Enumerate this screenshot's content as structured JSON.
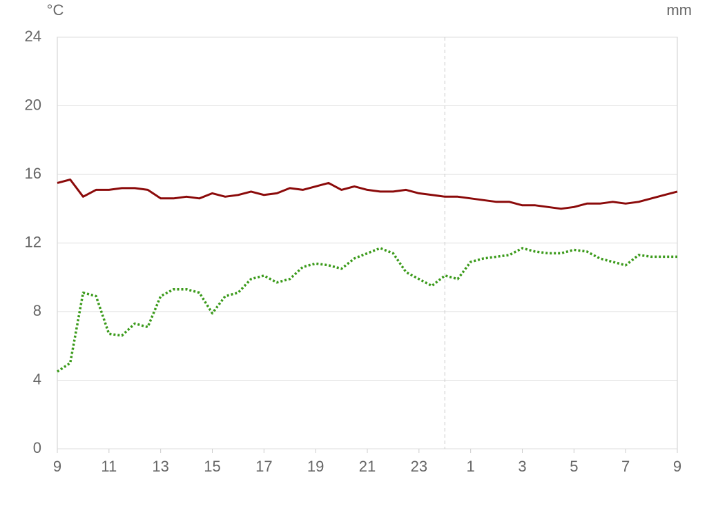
{
  "chart_data": {
    "type": "line",
    "y_label": "°C",
    "y2_label": "mm",
    "x": [
      9,
      9.5,
      10,
      10.5,
      11,
      11.5,
      12,
      12.5,
      13,
      13.5,
      14,
      14.5,
      15,
      15.5,
      16,
      16.5,
      17,
      17.5,
      18,
      18.5,
      19,
      19.5,
      20,
      20.5,
      21,
      21.5,
      22,
      22.5,
      23,
      23.5,
      24,
      24.5,
      25,
      25.5,
      26,
      26.5,
      27,
      27.5,
      28,
      28.5,
      29,
      29.5,
      30,
      30.5,
      31,
      31.5,
      32,
      32.5,
      33
    ],
    "series": [
      {
        "color": "#8b0a0a",
        "style": "solid",
        "values": [
          15.5,
          15.7,
          14.7,
          15.1,
          15.1,
          15.2,
          15.2,
          15.1,
          14.6,
          14.6,
          14.7,
          14.6,
          14.9,
          14.7,
          14.8,
          15.0,
          14.8,
          14.9,
          15.2,
          15.1,
          15.3,
          15.5,
          15.1,
          15.3,
          15.1,
          15.0,
          15.0,
          15.1,
          14.9,
          14.8,
          14.7,
          14.7,
          14.6,
          14.5,
          14.4,
          14.4,
          14.2,
          14.2,
          14.1,
          14.0,
          14.1,
          14.3,
          14.3,
          14.4,
          14.3,
          14.4,
          14.6,
          14.8,
          15.0
        ]
      },
      {
        "color": "#3a9a1a",
        "style": "dotted",
        "values": [
          4.5,
          5.0,
          9.1,
          8.9,
          6.7,
          6.6,
          7.3,
          7.1,
          8.9,
          9.3,
          9.3,
          9.1,
          7.9,
          8.9,
          9.1,
          9.9,
          10.1,
          9.7,
          9.9,
          10.6,
          10.8,
          10.7,
          10.5,
          11.1,
          11.4,
          11.7,
          11.4,
          10.3,
          9.9,
          9.5,
          10.1,
          9.9,
          10.9,
          11.1,
          11.2,
          11.3,
          11.7,
          11.5,
          11.4,
          11.4,
          11.6,
          11.5,
          11.1,
          10.9,
          10.7,
          11.3,
          11.2,
          11.2,
          11.2
        ]
      }
    ],
    "xlim": [
      9,
      33
    ],
    "xticks": [
      9,
      11,
      13,
      15,
      17,
      19,
      21,
      23,
      {
        "value": 25,
        "label": "1"
      },
      {
        "value": 27,
        "label": "3"
      },
      {
        "value": 29,
        "label": "5"
      },
      {
        "value": 31,
        "label": "7"
      },
      {
        "value": 33,
        "label": "9"
      }
    ],
    "ylim": [
      0,
      24
    ],
    "yticks": [
      0,
      4,
      8,
      12,
      16,
      20,
      24
    ],
    "grid": true,
    "x_markers": [
      24
    ]
  }
}
